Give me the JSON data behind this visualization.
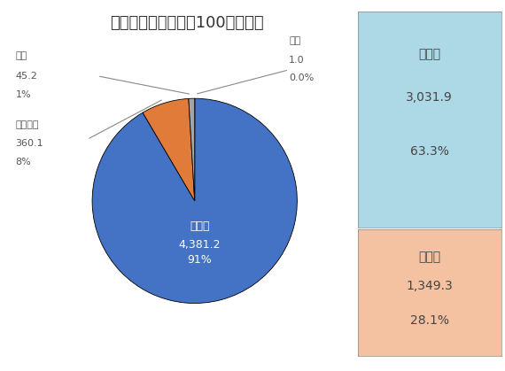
{
  "title": "輸送トン数（単位　100万トン）",
  "title_fontsize": 13,
  "slices": [
    {
      "label": "航空",
      "value": 1.0,
      "pct": "0.0%",
      "color": "#7F7F7F"
    },
    {
      "label": "自動車",
      "value": 4381.2,
      "pct": "91%",
      "color": "#4472C4"
    },
    {
      "label": "内航海運",
      "value": 360.1,
      "pct": "8%",
      "color": "#E07B39"
    },
    {
      "label": "鉄道",
      "value": 45.2,
      "pct": "1%",
      "color": "#A5A5A5"
    }
  ],
  "auto_label": "自動車",
  "auto_value": "4,381.2",
  "auto_pct": "91%",
  "sub_boxes": [
    {
      "label": "営業用",
      "value": "3,031.9",
      "pct": "63.3%",
      "color": "#ADD8E6"
    },
    {
      "label": "自家用",
      "value": "1,349.3",
      "pct": "28.1%",
      "color": "#F4C2A1"
    }
  ],
  "background_color": "#FFFFFF",
  "label_color": "#555555",
  "white": "#FFFFFF"
}
